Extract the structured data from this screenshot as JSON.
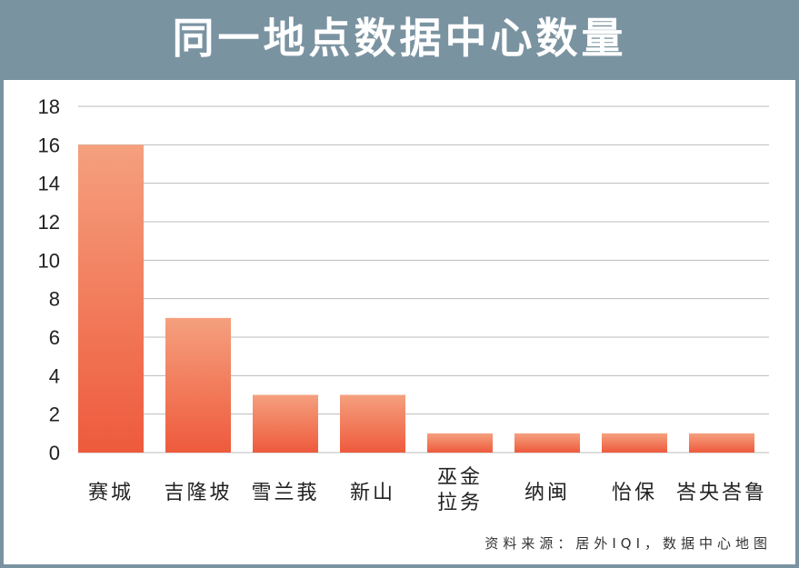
{
  "header": {
    "title": "同一地点数据中心数量"
  },
  "source": "资料来源：居外IQI，数据中心地图",
  "colors": {
    "header_bg": "#7a93a1",
    "bar_top": "#f5a07e",
    "bar_bottom": "#ee5a3c",
    "grid": "#bbbbbb"
  },
  "chart_data": {
    "type": "bar",
    "categories": [
      "赛城",
      "吉隆坡",
      "雪兰莪",
      "新山",
      "巫金拉务",
      "纳闽",
      "怡保",
      "峇央峇鲁"
    ],
    "category_lines": [
      [
        "赛城"
      ],
      [
        "吉隆坡"
      ],
      [
        "雪兰莪"
      ],
      [
        "新山"
      ],
      [
        "巫金",
        "拉务"
      ],
      [
        "纳闽"
      ],
      [
        "怡保"
      ],
      [
        "峇央峇鲁"
      ]
    ],
    "values": [
      16,
      7,
      3,
      3,
      1,
      1,
      1,
      1
    ],
    "title": "同一地点数据中心数量",
    "ylim": [
      0,
      18
    ],
    "yticks": [
      0,
      2,
      4,
      6,
      8,
      10,
      12,
      14,
      16,
      18
    ],
    "grid": true,
    "legend": "none"
  }
}
